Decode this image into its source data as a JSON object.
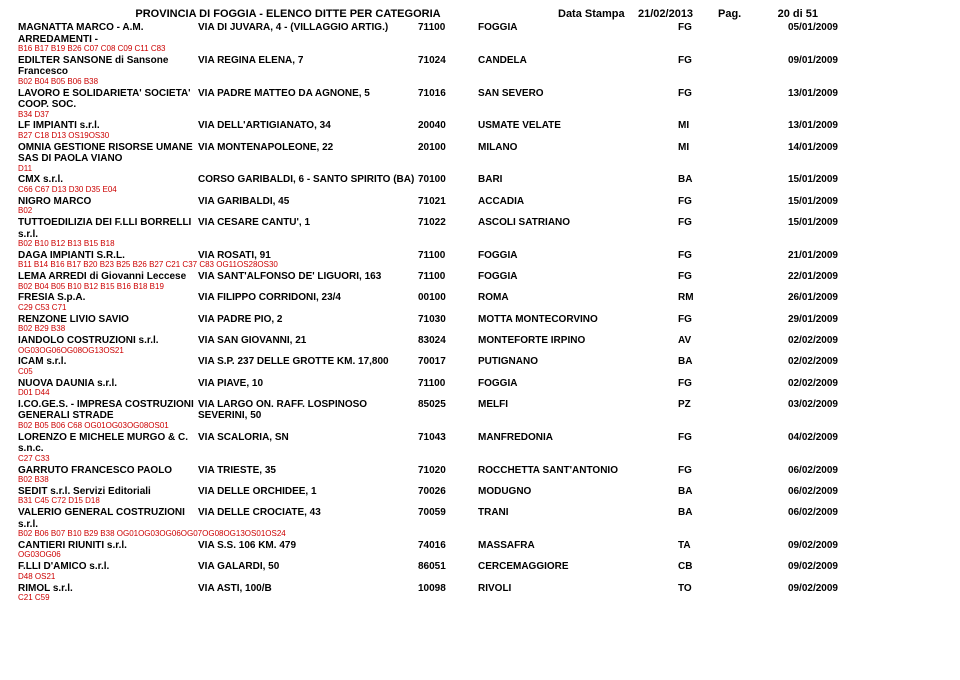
{
  "header": {
    "title": "PROVINCIA DI FOGGIA - ELENCO DITTE PER CATEGORIA",
    "date_label": "Data Stampa",
    "date": "21/02/2013",
    "pag_label": "Pag.",
    "page_num": "20 di  51"
  },
  "rows": [
    {
      "name": "MAGNATTA MARCO - A.M. ARREDAMENTI -",
      "addr": "VIA DI JUVARA, 4 - (VILLAGGIO ARTIG.)",
      "zip": "71100",
      "city": "FOGGIA",
      "prov": "FG",
      "date": "05/01/2009",
      "codes": "B16  B17  B19  B26  C07  C08  C09  C11  C83"
    },
    {
      "name": "EDILTER SANSONE di Sansone Francesco",
      "addr": "VIA REGINA ELENA, 7",
      "zip": "71024",
      "city": "CANDELA",
      "prov": "FG",
      "date": "09/01/2009",
      "codes": "B02  B04  B05  B06  B38"
    },
    {
      "name": "LAVORO E SOLIDARIETA' SOCIETA' COOP. SOC.",
      "addr": "VIA PADRE MATTEO DA AGNONE, 5",
      "zip": "71016",
      "city": "SAN SEVERO",
      "prov": "FG",
      "date": "13/01/2009",
      "codes": "B34  D37"
    },
    {
      "name": "LF IMPIANTI s.r.l.",
      "addr": "VIA DELL'ARTIGIANATO, 34",
      "zip": "20040",
      "city": "USMATE VELATE",
      "prov": "MI",
      "date": "13/01/2009",
      "codes": "B27  C18  D13  OS19OS30"
    },
    {
      "name": "OMNIA GESTIONE RISORSE UMANE SAS DI PAOLA VIANO",
      "addr": "VIA MONTENAPOLEONE, 22",
      "zip": "20100",
      "city": "MILANO",
      "prov": "MI",
      "date": "14/01/2009",
      "codes": "D11"
    },
    {
      "name": "CMX s.r.l.",
      "addr": "CORSO GARIBALDI, 6 - SANTO SPIRITO (BA)",
      "zip": "70100",
      "city": "BARI",
      "prov": "BA",
      "date": "15/01/2009",
      "codes": "C66  C67  D13  D30  D35  E04"
    },
    {
      "name": "NIGRO MARCO",
      "addr": "VIA GARIBALDI, 45",
      "zip": "71021",
      "city": "ACCADIA",
      "prov": "FG",
      "date": "15/01/2009",
      "codes": "B02"
    },
    {
      "name": "TUTTOEDILIZIA DEI F.LLI BORRELLI s.r.l.",
      "addr": "VIA CESARE CANTU', 1",
      "zip": "71022",
      "city": "ASCOLI SATRIANO",
      "prov": "FG",
      "date": "15/01/2009",
      "codes": "B02  B10  B12  B13  B15  B18"
    },
    {
      "name": "DAGA IMPIANTI S.R.L.",
      "addr": "VIA ROSATI, 91",
      "zip": "71100",
      "city": "FOGGIA",
      "prov": "FG",
      "date": "21/01/2009",
      "codes": "B11  B14  B16  B17  B20  B23  B25  B26  B27  C21  C37  C83  OG11OS28OS30"
    },
    {
      "name": "LEMA ARREDI di Giovanni Leccese",
      "addr": "VIA SANT'ALFONSO DE' LIGUORI, 163",
      "zip": "71100",
      "city": "FOGGIA",
      "prov": "FG",
      "date": "22/01/2009",
      "codes": "B02  B04  B05  B10  B12  B15  B16  B18  B19"
    },
    {
      "name": "FRESIA S.p.A.",
      "addr": "VIA FILIPPO CORRIDONI, 23/4",
      "zip": "00100",
      "city": "ROMA",
      "prov": "RM",
      "date": "26/01/2009",
      "codes": "C29  C53  C71"
    },
    {
      "name": "RENZONE LIVIO SAVIO",
      "addr": "VIA PADRE PIO, 2",
      "zip": "71030",
      "city": "MOTTA MONTECORVINO",
      "prov": "FG",
      "date": "29/01/2009",
      "codes": "B02  B29  B38"
    },
    {
      "name": "IANDOLO COSTRUZIONI s.r.l.",
      "addr": "VIA SAN GIOVANNI, 21",
      "zip": "83024",
      "city": "MONTEFORTE IRPINO",
      "prov": "AV",
      "date": "02/02/2009",
      "codes": "OG03OG06OG08OG13OS21"
    },
    {
      "name": "ICAM s.r.l.",
      "addr": "VIA S.P. 237 DELLE GROTTE KM. 17,800",
      "zip": "70017",
      "city": "PUTIGNANO",
      "prov": "BA",
      "date": "02/02/2009",
      "codes": "C05"
    },
    {
      "name": "NUOVA DAUNIA s.r.l.",
      "addr": "VIA PIAVE, 10",
      "zip": "71100",
      "city": "FOGGIA",
      "prov": "FG",
      "date": "02/02/2009",
      "codes": "D01  D44"
    },
    {
      "name": "I.CO.GE.S. - IMPRESA COSTRUZIONI GENERALI STRADE",
      "addr": "VIA LARGO ON. RAFF. LOSPINOSO SEVERINI, 50",
      "zip": "85025",
      "city": "MELFI",
      "prov": "PZ",
      "date": "03/02/2009",
      "codes": "B02  B05  B06  C68  OG01OG03OG08OS01"
    },
    {
      "name": "LORENZO E MICHELE MURGO & C. s.n.c.",
      "addr": "VIA SCALORIA, SN",
      "zip": "71043",
      "city": "MANFREDONIA",
      "prov": "FG",
      "date": "04/02/2009",
      "codes": "C27  C33"
    },
    {
      "name": "GARRUTO FRANCESCO PAOLO",
      "addr": "VIA TRIESTE, 35",
      "zip": "71020",
      "city": "ROCCHETTA SANT'ANTONIO",
      "prov": "FG",
      "date": "06/02/2009",
      "codes": "B02  B38"
    },
    {
      "name": "SEDIT s.r.l. Servizi Editoriali",
      "addr": "VIA DELLE ORCHIDEE, 1",
      "zip": "70026",
      "city": "MODUGNO",
      "prov": "BA",
      "date": "06/02/2009",
      "codes": "B31  C45  C72  D15  D18"
    },
    {
      "name": "VALERIO GENERAL COSTRUZIONI s.r.l.",
      "addr": "VIA DELLE CROCIATE, 43",
      "zip": "70059",
      "city": "TRANI",
      "prov": "BA",
      "date": "06/02/2009",
      "codes": "B02  B06  B07  B10  B29  B38  OG01OG03OG06OG07OG08OG13OS01OS24"
    },
    {
      "name": "CANTIERI RIUNITI s.r.l.",
      "addr": "VIA S.S. 106 KM. 479",
      "zip": "74016",
      "city": "MASSAFRA",
      "prov": "TA",
      "date": "09/02/2009",
      "codes": "OG03OG06"
    },
    {
      "name": "F.LLI D'AMICO s.r.l.",
      "addr": "VIA GALARDI, 50",
      "zip": "86051",
      "city": "CERCEMAGGIORE",
      "prov": "CB",
      "date": "09/02/2009",
      "codes": "D48  OS21"
    },
    {
      "name": "RIMOL s.r.l.",
      "addr": "VIA ASTI, 100/B",
      "zip": "10098",
      "city": "RIVOLI",
      "prov": "TO",
      "date": "09/02/2009",
      "codes": "C21  C59"
    }
  ]
}
